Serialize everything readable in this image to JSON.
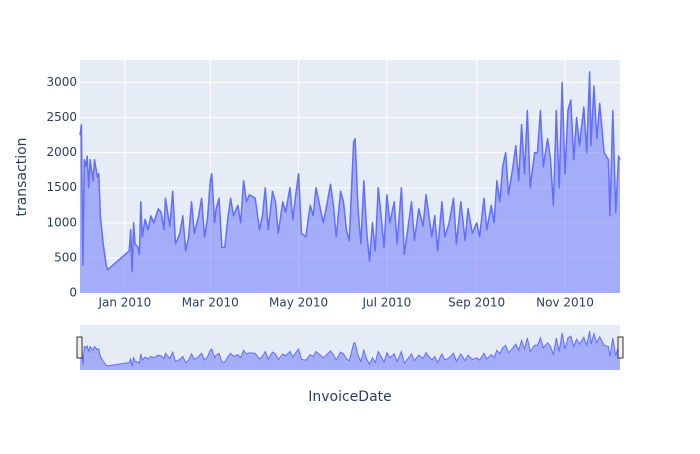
{
  "chart_data": {
    "type": "area",
    "x_label": "InvoiceDate",
    "y_label": "transaction",
    "color": "#636efa",
    "fill_color": "rgba(99,110,250,0.5)",
    "grid": true,
    "rangeslider": true,
    "xlim": [
      "2009-12-01",
      "2010-12-09"
    ],
    "ylim": [
      0,
      3320
    ],
    "yticks": [
      0,
      500,
      1000,
      1500,
      2000,
      2500,
      3000
    ],
    "xticks": [
      {
        "value": "2010-01-01",
        "label": "Jan 2010"
      },
      {
        "value": "2010-03-01",
        "label": "Mar 2010"
      },
      {
        "value": "2010-05-01",
        "label": "May 2010"
      },
      {
        "value": "2010-07-01",
        "label": "Jul 2010"
      },
      {
        "value": "2010-09-01",
        "label": "Sep 2010"
      },
      {
        "value": "2010-11-01",
        "label": "Nov 2010"
      }
    ],
    "x": [
      "2009-12-01",
      "2009-12-02",
      "2009-12-03",
      "2009-12-04",
      "2009-12-05",
      "2009-12-06",
      "2009-12-07",
      "2009-12-08",
      "2009-12-10",
      "2009-12-11",
      "2009-12-13",
      "2009-12-14",
      "2009-12-15",
      "2009-12-17",
      "2009-12-19",
      "2009-12-20",
      "2010-01-04",
      "2010-01-05",
      "2010-01-06",
      "2010-01-07",
      "2010-01-08",
      "2010-01-10",
      "2010-01-11",
      "2010-01-12",
      "2010-01-13",
      "2010-01-15",
      "2010-01-17",
      "2010-01-19",
      "2010-01-21",
      "2010-01-24",
      "2010-01-26",
      "2010-01-28",
      "2010-01-29",
      "2010-02-01",
      "2010-02-03",
      "2010-02-05",
      "2010-02-08",
      "2010-02-10",
      "2010-02-12",
      "2010-02-14",
      "2010-02-16",
      "2010-02-18",
      "2010-02-21",
      "2010-02-23",
      "2010-02-25",
      "2010-02-27",
      "2010-03-01",
      "2010-03-02",
      "2010-03-04",
      "2010-03-05",
      "2010-03-07",
      "2010-03-09",
      "2010-03-11",
      "2010-03-13",
      "2010-03-15",
      "2010-03-17",
      "2010-03-20",
      "2010-03-22",
      "2010-03-24",
      "2010-03-26",
      "2010-03-28",
      "2010-04-01",
      "2010-04-04",
      "2010-04-06",
      "2010-04-08",
      "2010-04-10",
      "2010-04-13",
      "2010-04-15",
      "2010-04-17",
      "2010-04-20",
      "2010-04-22",
      "2010-04-25",
      "2010-04-27",
      "2010-04-29",
      "2010-05-01",
      "2010-05-03",
      "2010-05-06",
      "2010-05-09",
      "2010-05-11",
      "2010-05-13",
      "2010-05-15",
      "2010-05-18",
      "2010-05-20",
      "2010-05-23",
      "2010-05-25",
      "2010-05-27",
      "2010-05-30",
      "2010-06-01",
      "2010-06-03",
      "2010-06-05",
      "2010-06-08",
      "2010-06-09",
      "2010-06-11",
      "2010-06-13",
      "2010-06-15",
      "2010-06-17",
      "2010-06-19",
      "2010-06-21",
      "2010-06-23",
      "2010-06-25",
      "2010-06-27",
      "2010-06-29",
      "2010-07-01",
      "2010-07-03",
      "2010-07-06",
      "2010-07-08",
      "2010-07-11",
      "2010-07-13",
      "2010-07-15",
      "2010-07-18",
      "2010-07-20",
      "2010-07-23",
      "2010-07-26",
      "2010-07-28",
      "2010-08-01",
      "2010-08-03",
      "2010-08-05",
      "2010-08-08",
      "2010-08-10",
      "2010-08-13",
      "2010-08-16",
      "2010-08-18",
      "2010-08-21",
      "2010-08-24",
      "2010-08-26",
      "2010-08-29",
      "2010-09-01",
      "2010-09-03",
      "2010-09-06",
      "2010-09-08",
      "2010-09-11",
      "2010-09-13",
      "2010-09-15",
      "2010-09-17",
      "2010-09-19",
      "2010-09-21",
      "2010-09-23",
      "2010-09-26",
      "2010-09-28",
      "2010-09-30",
      "2010-10-02",
      "2010-10-04",
      "2010-10-06",
      "2010-10-08",
      "2010-10-11",
      "2010-10-13",
      "2010-10-15",
      "2010-10-17",
      "2010-10-20",
      "2010-10-22",
      "2010-10-24",
      "2010-10-26",
      "2010-10-28",
      "2010-10-30",
      "2010-11-01",
      "2010-11-03",
      "2010-11-05",
      "2010-11-07",
      "2010-11-09",
      "2010-11-11",
      "2010-11-14",
      "2010-11-16",
      "2010-11-18",
      "2010-11-19",
      "2010-11-21",
      "2010-11-23",
      "2010-11-25",
      "2010-11-28",
      "2010-12-01",
      "2010-12-02",
      "2010-12-04",
      "2010-12-06",
      "2010-12-08",
      "2010-12-09"
    ],
    "values": [
      2250,
      2400,
      400,
      1900,
      1800,
      1950,
      1500,
      1900,
      1600,
      1900,
      1650,
      1700,
      1100,
      700,
      400,
      330,
      600,
      900,
      300,
      1000,
      700,
      650,
      550,
      1300,
      800,
      1050,
      900,
      1100,
      1000,
      1200,
      1150,
      900,
      1350,
      950,
      1450,
      700,
      850,
      1100,
      600,
      800,
      1300,
      850,
      1100,
      1350,
      800,
      1050,
      1600,
      1700,
      1000,
      1200,
      1350,
      650,
      650,
      1050,
      1350,
      1100,
      1250,
      1000,
      1600,
      1300,
      1400,
      1350,
      900,
      1100,
      1500,
      900,
      1450,
      1300,
      850,
      1300,
      1150,
      1500,
      1050,
      1400,
      1700,
      850,
      800,
      1250,
      1100,
      1500,
      1300,
      1000,
      1200,
      1550,
      1250,
      800,
      1450,
      1300,
      900,
      750,
      2150,
      2200,
      1200,
      700,
      1600,
      900,
      450,
      1000,
      600,
      1500,
      1100,
      650,
      1400,
      1000,
      1300,
      700,
      1500,
      550,
      850,
      1300,
      750,
      1200,
      950,
      1400,
      800,
      1100,
      600,
      1300,
      800,
      1000,
      1350,
      700,
      1300,
      750,
      1200,
      850,
      1000,
      800,
      1350,
      900,
      1250,
      1000,
      1600,
      1300,
      1800,
      2000,
      1400,
      1800,
      2100,
      1600,
      2400,
      1700,
      2600,
      1500,
      2000,
      2000,
      2600,
      1800,
      2200,
      1900,
      1250,
      2600,
      1500,
      3000,
      1700,
      2600,
      2750,
      1900,
      2500,
      2100,
      2650,
      2000,
      3150,
      2100,
      2950,
      2200,
      2700,
      2000,
      1900,
      1100,
      2600,
      1150,
      1950,
      1900
    ]
  }
}
